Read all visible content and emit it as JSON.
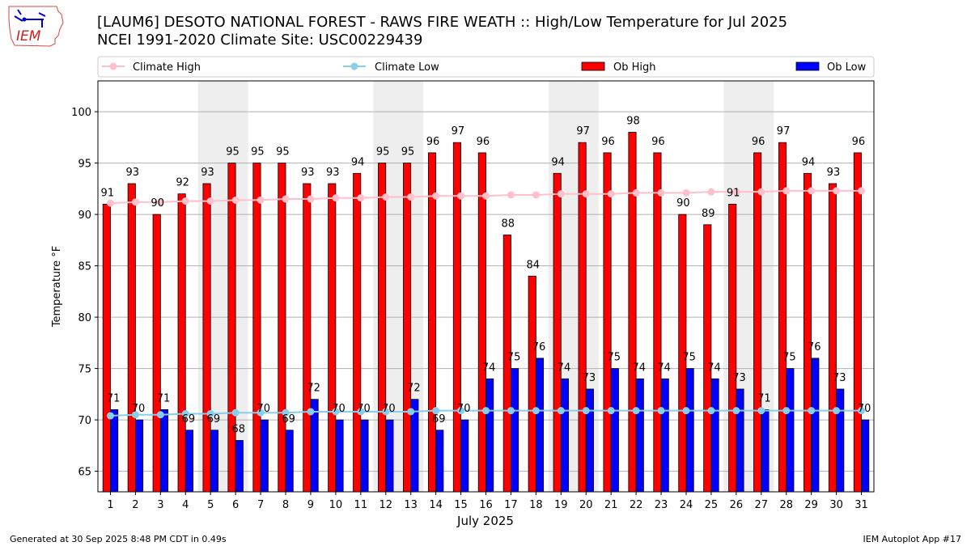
{
  "logo": {
    "text": "IEM"
  },
  "title_line1": "[LAUM6] DESOTO NATIONAL FOREST - RAWS FIRE WEATH :: High/Low Temperature for Jul 2025",
  "title_line2": "NCEI 1991-2020 Climate Site: USC00229439",
  "footer_left": "Generated at 30 Sep 2025 8:48 PM CDT in 0.49s",
  "footer_right": "IEM Autoplot App #17",
  "colors": {
    "ob_high": "#ff0000",
    "ob_low": "#0000ff",
    "climate_high": "#ffc0cb",
    "climate_low": "#87ceeb",
    "weekend": "#eeeeee"
  },
  "chart_data": {
    "type": "bar",
    "xlabel": "July 2025",
    "ylabel": "Temperature °F",
    "xlim": [
      0.5,
      31.5
    ],
    "ylim": [
      63,
      103
    ],
    "yticks": [
      65,
      70,
      75,
      80,
      85,
      90,
      95,
      100
    ],
    "grid": true,
    "legend_placement": "top",
    "legend": [
      "Climate High",
      "Climate Low",
      "Ob High",
      "Ob Low"
    ],
    "weekend_shading": [
      [
        5,
        6
      ],
      [
        12,
        13
      ],
      [
        19,
        20
      ],
      [
        26,
        27
      ]
    ],
    "days": [
      1,
      2,
      3,
      4,
      5,
      6,
      7,
      8,
      9,
      10,
      11,
      12,
      13,
      14,
      15,
      16,
      17,
      18,
      19,
      20,
      21,
      22,
      23,
      24,
      25,
      26,
      27,
      28,
      29,
      30,
      31
    ],
    "series": [
      {
        "name": "Ob High",
        "type": "bar",
        "values": [
          91,
          93,
          90,
          92,
          93,
          95,
          95,
          95,
          93,
          93,
          94,
          95,
          95,
          96,
          97,
          96,
          88,
          84,
          94,
          97,
          96,
          98,
          96,
          90,
          89,
          91,
          96,
          97,
          94,
          93,
          96
        ]
      },
      {
        "name": "Ob Low",
        "type": "bar",
        "values": [
          71,
          70,
          71,
          69,
          69,
          68,
          70,
          69,
          72,
          70,
          70,
          70,
          72,
          69,
          70,
          74,
          75,
          76,
          74,
          73,
          75,
          74,
          74,
          75,
          74,
          73,
          71,
          75,
          76,
          73,
          70
        ]
      },
      {
        "name": "Climate High",
        "type": "line",
        "values": [
          91.1,
          91.2,
          91.2,
          91.3,
          91.3,
          91.4,
          91.4,
          91.5,
          91.5,
          91.6,
          91.6,
          91.7,
          91.7,
          91.8,
          91.8,
          91.8,
          91.9,
          91.9,
          92.0,
          92.0,
          92.0,
          92.1,
          92.1,
          92.1,
          92.2,
          92.2,
          92.2,
          92.3,
          92.3,
          92.3,
          92.3
        ]
      },
      {
        "name": "Climate Low",
        "type": "line",
        "values": [
          70.4,
          70.5,
          70.5,
          70.6,
          70.6,
          70.7,
          70.7,
          70.7,
          70.8,
          70.8,
          70.8,
          70.8,
          70.8,
          70.9,
          70.9,
          70.9,
          70.9,
          70.9,
          70.9,
          70.9,
          70.9,
          70.9,
          70.9,
          70.9,
          70.9,
          70.9,
          70.9,
          70.9,
          70.9,
          70.9,
          70.9
        ]
      }
    ]
  }
}
